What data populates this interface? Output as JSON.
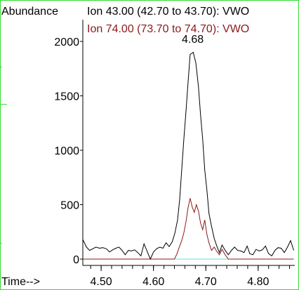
{
  "chart_data": {
    "type": "line",
    "ylabel": "Abundance",
    "xlabel": "Time-->",
    "xlim": [
      4.465,
      4.87
    ],
    "ylim": [
      0,
      2200
    ],
    "x_ticks": [
      "4.50",
      "4.60",
      "4.70",
      "4.80"
    ],
    "x_tick_values": [
      4.5,
      4.6,
      4.7,
      4.8
    ],
    "y_ticks": [
      "0",
      "500",
      "1000",
      "1500",
      "2000"
    ],
    "y_tick_values": [
      0,
      500,
      1000,
      1500,
      2000
    ],
    "peak_label": "4.68",
    "peak_label_x": 4.675,
    "peak_label_y": 1950,
    "grid": false,
    "series": [
      {
        "name": "Ion  43.00 (42.70 to 43.70): VWO",
        "color": "#000000",
        "points": [
          [
            4.465,
            180
          ],
          [
            4.472,
            110
          ],
          [
            4.478,
            80
          ],
          [
            4.484,
            95
          ],
          [
            4.49,
            110
          ],
          [
            4.497,
            100
          ],
          [
            4.503,
            105
          ],
          [
            4.51,
            95
          ],
          [
            4.516,
            65
          ],
          [
            4.522,
            85
          ],
          [
            4.528,
            100
          ],
          [
            4.534,
            110
          ],
          [
            4.54,
            80
          ],
          [
            4.546,
            40
          ],
          [
            4.552,
            80
          ],
          [
            4.558,
            75
          ],
          [
            4.564,
            85
          ],
          [
            4.57,
            60
          ],
          [
            4.576,
            30
          ],
          [
            4.582,
            140
          ],
          [
            4.588,
            70
          ],
          [
            4.594,
            0
          ],
          [
            4.6,
            65
          ],
          [
            4.606,
            95
          ],
          [
            4.612,
            110
          ],
          [
            4.618,
            100
          ],
          [
            4.624,
            150
          ],
          [
            4.63,
            115
          ],
          [
            4.636,
            160
          ],
          [
            4.641,
            240
          ],
          [
            4.646,
            360
          ],
          [
            4.65,
            550
          ],
          [
            4.654,
            820
          ],
          [
            4.658,
            1100
          ],
          [
            4.662,
            1350
          ],
          [
            4.666,
            1620
          ],
          [
            4.67,
            1880
          ],
          [
            4.676,
            1900
          ],
          [
            4.681,
            1800
          ],
          [
            4.686,
            1580
          ],
          [
            4.69,
            1320
          ],
          [
            4.694,
            1100
          ],
          [
            4.698,
            820
          ],
          [
            4.702,
            640
          ],
          [
            4.706,
            420
          ],
          [
            4.711,
            300
          ],
          [
            4.716,
            190
          ],
          [
            4.721,
            120
          ],
          [
            4.726,
            60
          ],
          [
            4.731,
            130
          ],
          [
            4.737,
            80
          ],
          [
            4.743,
            40
          ],
          [
            4.749,
            80
          ],
          [
            4.755,
            110
          ],
          [
            4.761,
            80
          ],
          [
            4.767,
            75
          ],
          [
            4.773,
            60
          ],
          [
            4.779,
            120
          ],
          [
            4.784,
            50
          ],
          [
            4.79,
            40
          ],
          [
            4.796,
            90
          ],
          [
            4.802,
            75
          ],
          [
            4.808,
            85
          ],
          [
            4.814,
            120
          ],
          [
            4.82,
            50
          ],
          [
            4.826,
            30
          ],
          [
            4.832,
            80
          ],
          [
            4.838,
            105
          ],
          [
            4.844,
            100
          ],
          [
            4.85,
            60
          ],
          [
            4.856,
            110
          ],
          [
            4.862,
            170
          ],
          [
            4.868,
            80
          ]
        ]
      },
      {
        "name": "Ion  74.00 (73.70 to 74.70): VWO",
        "color": "#8b1a1a",
        "points": [
          [
            4.465,
            0
          ],
          [
            4.64,
            0
          ],
          [
            4.645,
            50
          ],
          [
            4.65,
            120
          ],
          [
            4.654,
            170
          ],
          [
            4.658,
            240
          ],
          [
            4.662,
            340
          ],
          [
            4.666,
            470
          ],
          [
            4.67,
            560
          ],
          [
            4.674,
            480
          ],
          [
            4.678,
            430
          ],
          [
            4.682,
            500
          ],
          [
            4.686,
            440
          ],
          [
            4.69,
            330
          ],
          [
            4.694,
            270
          ],
          [
            4.698,
            360
          ],
          [
            4.702,
            230
          ],
          [
            4.706,
            150
          ],
          [
            4.711,
            80
          ],
          [
            4.716,
            110
          ],
          [
            4.721,
            70
          ],
          [
            4.726,
            40
          ],
          [
            4.731,
            90
          ],
          [
            4.737,
            40
          ],
          [
            4.743,
            0
          ],
          [
            4.868,
            0
          ]
        ]
      },
      {
        "name": "",
        "color": "#66dddd",
        "points": [
          [
            4.465,
            0
          ],
          [
            4.868,
            0
          ]
        ]
      }
    ]
  }
}
